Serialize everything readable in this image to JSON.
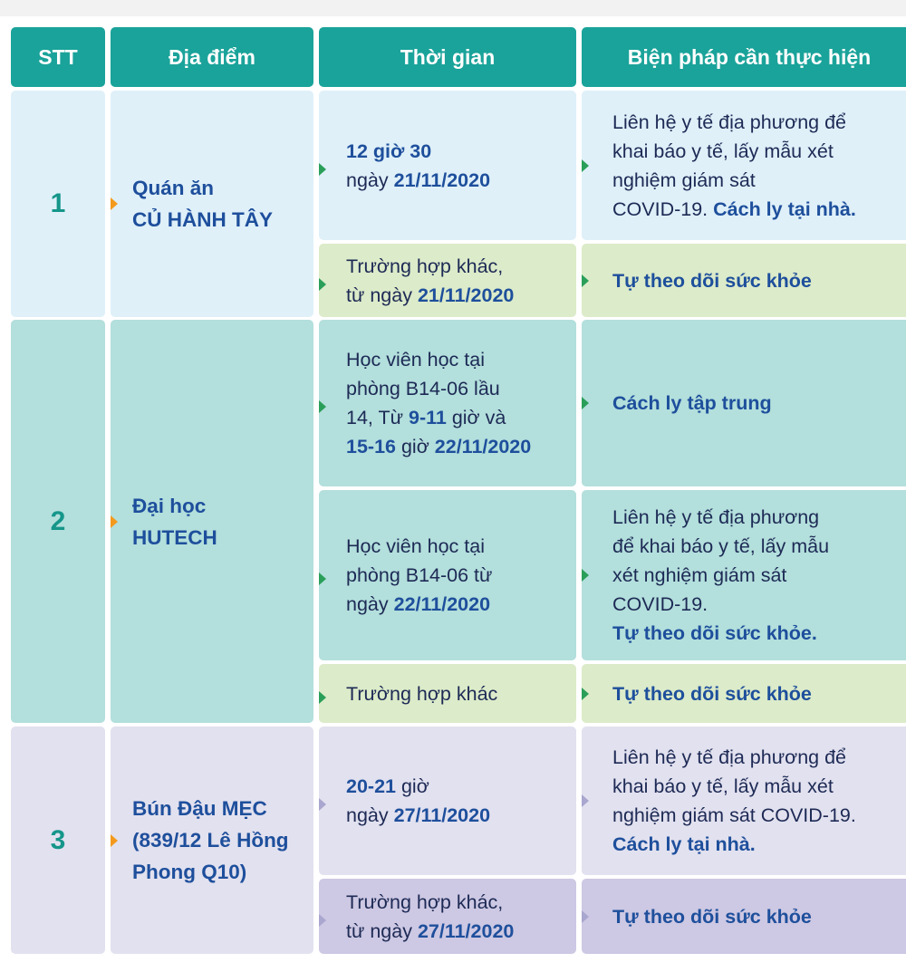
{
  "table": {
    "columns": [
      "STT",
      "Địa điểm",
      "Thời gian",
      "Biện pháp cần thực hiện"
    ],
    "groups": [
      {
        "stt": "1",
        "place": [
          "Quán ăn",
          "CỦ HÀNH TÂY"
        ],
        "cases": [
          {
            "time": [
              [
                {
                  "text": "12 giờ 30",
                  "accent": true
                }
              ],
              [
                "ngày ",
                {
                  "text": "21/11/2020",
                  "accent": true
                }
              ]
            ],
            "action": [
              [
                "Liên hệ y tế địa phương để"
              ],
              [
                "khai báo y tế, lấy mẫu xét"
              ],
              [
                "nghiệm giám sát"
              ],
              [
                "COVID-19. ",
                {
                  "text": "Cách ly tại nhà.",
                  "accent": true
                }
              ]
            ]
          },
          {
            "time": [
              [
                "Trường hợp khác,"
              ],
              [
                "từ ngày ",
                {
                  "text": "21/11/2020",
                  "accent": true
                }
              ]
            ],
            "action": [
              [
                {
                  "text": "Tự theo dõi sức khỏe",
                  "accent": true
                }
              ]
            ]
          }
        ]
      },
      {
        "stt": "2",
        "place": [
          "Đại học",
          "HUTECH"
        ],
        "cases": [
          {
            "time": [
              [
                "Học viên học tại"
              ],
              [
                "phòng B14-06 lầu"
              ],
              [
                "14, Từ ",
                {
                  "text": "9-11",
                  "accent": true
                },
                " giờ và"
              ],
              [
                {
                  "text": "15-16",
                  "accent": true
                },
                " giờ ",
                {
                  "text": "22/11/2020",
                  "accent": true
                }
              ]
            ],
            "action": [
              [
                {
                  "text": "Cách ly tập trung",
                  "accent": true
                }
              ]
            ]
          },
          {
            "time": [
              [
                "Học viên học tại"
              ],
              [
                "phòng B14-06 từ"
              ],
              [
                "ngày ",
                {
                  "text": "22/11/2020",
                  "accent": true
                }
              ]
            ],
            "action": [
              [
                "Liên hệ y tế địa phương"
              ],
              [
                "để khai báo y tế, lấy mẫu"
              ],
              [
                "xét nghiệm giám sát"
              ],
              [
                "COVID-19."
              ],
              [
                {
                  "text": "Tự theo dõi sức khỏe.",
                  "accent": true
                }
              ]
            ]
          },
          {
            "time": [
              [
                "Trường hợp khác"
              ]
            ],
            "action": [
              [
                {
                  "text": "Tự theo dõi sức khỏe",
                  "accent": true
                }
              ]
            ]
          }
        ]
      },
      {
        "stt": "3",
        "place": [
          "Bún Đậu MẸC",
          "(839/12 Lê Hồng",
          "Phong Q10)"
        ],
        "cases": [
          {
            "time": [
              [
                {
                  "text": "20-21",
                  "accent": true
                },
                " giờ"
              ],
              [
                "ngày ",
                {
                  "text": "27/11/2020",
                  "accent": true
                }
              ]
            ],
            "action": [
              [
                "Liên hệ y tế địa phương để"
              ],
              [
                "khai báo y tế, lấy mẫu xét"
              ],
              [
                "nghiệm giám sát COVID-19."
              ],
              [
                {
                  "text": "Cách ly tại nhà.",
                  "accent": true
                }
              ]
            ]
          },
          {
            "time": [
              [
                "Trường hợp khác,"
              ],
              [
                "từ ngày ",
                {
                  "text": "27/11/2020",
                  "accent": true
                }
              ]
            ],
            "action": [
              [
                {
                  "text": "Tự theo dõi sức khỏe",
                  "accent": true
                }
              ]
            ]
          }
        ]
      }
    ]
  }
}
